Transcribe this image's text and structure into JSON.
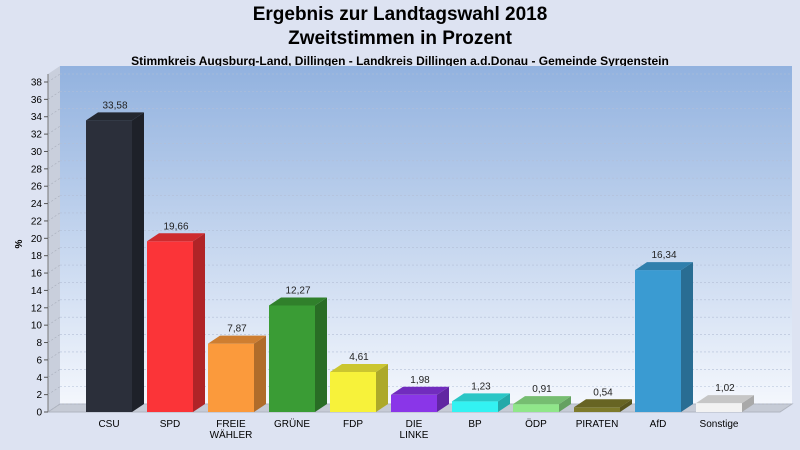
{
  "header": {
    "title_line1": "Ergebnis zur Landtagswahl 2018",
    "title_line2": "Zweitstimmen in Prozent",
    "subtitle": "Stimmkreis Augsburg-Land, Dillingen - Landkreis Dillingen a.d.Donau - Gemeinde Syrgenstein"
  },
  "chart_data": {
    "type": "bar",
    "title": "Ergebnis zur Landtagswahl 2018 Zweitstimmen in Prozent",
    "subtitle": "Stimmkreis Augsburg-Land, Dillingen - Landkreis Dillingen a.d.Donau - Gemeinde Syrgenstein",
    "xlabel": "",
    "ylabel": "%",
    "ylim": [
      0,
      38
    ],
    "yticks": [
      0,
      2,
      4,
      6,
      8,
      10,
      12,
      14,
      16,
      18,
      20,
      22,
      24,
      26,
      28,
      30,
      32,
      34,
      36,
      38
    ],
    "grid": true,
    "categories": [
      [
        "CSU"
      ],
      [
        "SPD"
      ],
      [
        "FREIE",
        "WÄHLER"
      ],
      [
        "GRÜNE"
      ],
      [
        "FDP"
      ],
      [
        "DIE",
        "LINKE"
      ],
      [
        "BP"
      ],
      [
        "ÖDP"
      ],
      [
        "PIRATEN"
      ],
      [
        "AfD"
      ],
      [
        "Sonstige"
      ]
    ],
    "values": [
      33.58,
      19.66,
      7.87,
      12.27,
      4.61,
      1.98,
      1.23,
      0.91,
      0.54,
      16.34,
      1.02
    ],
    "value_labels": [
      "33,58",
      "19,66",
      "7,87",
      "12,27",
      "4,61",
      "1,98",
      "1,23",
      "0,91",
      "0,54",
      "16,34",
      "1,02"
    ],
    "colors": [
      "#2b2f3a",
      "#fb3438",
      "#fb9a3c",
      "#3a9c35",
      "#f7f23a",
      "#8a36e8",
      "#33f2f2",
      "#90e68a",
      "#7d7a2b",
      "#3a9bd2",
      "#f2f2f2"
    ]
  }
}
